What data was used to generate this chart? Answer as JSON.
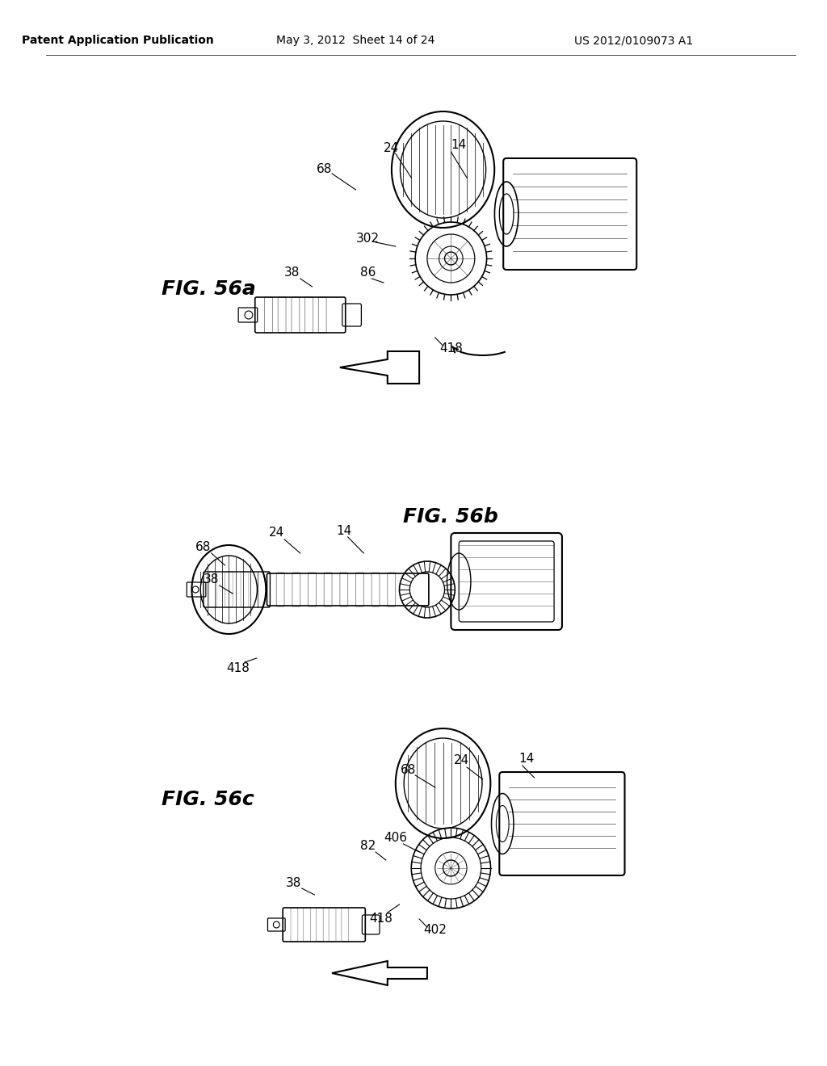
{
  "bg_color": "#ffffff",
  "header_left": "Patent Application Publication",
  "header_center": "May 3, 2012  Sheet 14 of 24",
  "header_right": "US 2012/0109073 A1",
  "fig56a_label": "FIG. 56a",
  "fig56b_label": "FIG. 56b",
  "fig56c_label": "FIG. 56c",
  "labels_56a": [
    "68",
    "24",
    "14",
    "302",
    "38",
    "86",
    "418"
  ],
  "labels_56b": [
    "68",
    "24",
    "14",
    "38",
    "418"
  ],
  "labels_56c": [
    "68",
    "24",
    "14",
    "406",
    "82",
    "38",
    "418",
    "402"
  ]
}
